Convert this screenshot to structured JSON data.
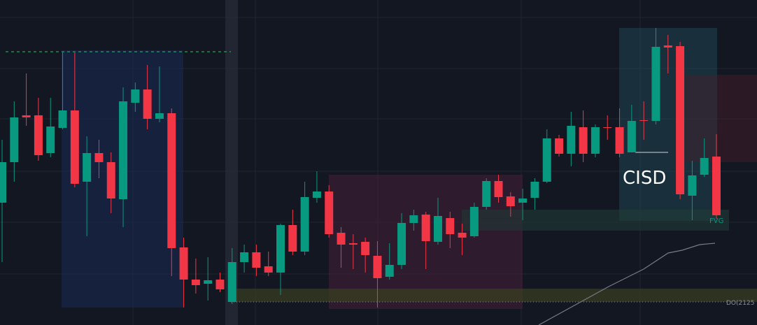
{
  "chart_data": {
    "type": "candlestick",
    "up_color": "#089981",
    "down_color": "#f23645",
    "ylim": [
      0,
      465
    ],
    "open": [
      175,
      233,
      300,
      300,
      246,
      282,
      307,
      205,
      246,
      233,
      180,
      318,
      337,
      295,
      303,
      111,
      65,
      59,
      65,
      33,
      90,
      104,
      84,
      75,
      143,
      105,
      182,
      191,
      132,
      117,
      119,
      99,
      69,
      86,
      146,
      158,
      119,
      153,
      132,
      127,
      169,
      206,
      184,
      175,
      182,
      205,
      267,
      245,
      283,
      245,
      283,
      283,
      247,
      293,
      292,
      400,
      399,
      185,
      215,
      241
    ],
    "high": [
      265,
      320,
      360,
      325,
      325,
      390,
      390,
      270,
      265,
      247,
      340,
      347,
      372,
      370,
      310,
      125,
      95,
      97,
      75,
      110,
      115,
      115,
      105,
      145,
      165,
      205,
      220,
      200,
      140,
      130,
      125,
      120,
      117,
      160,
      165,
      162,
      182,
      162,
      145,
      175,
      210,
      215,
      190,
      195,
      210,
      280,
      272,
      305,
      307,
      287,
      300,
      310,
      315,
      320,
      425,
      415,
      405,
      235,
      267,
      273
    ],
    "low": [
      90,
      205,
      285,
      235,
      240,
      280,
      197,
      127,
      210,
      160,
      140,
      305,
      280,
      290,
      70,
      25,
      45,
      35,
      47,
      30,
      75,
      70,
      70,
      43,
      100,
      100,
      175,
      125,
      82,
      80,
      75,
      25,
      65,
      80,
      135,
      80,
      115,
      110,
      100,
      125,
      165,
      175,
      155,
      150,
      165,
      203,
      241,
      227,
      233,
      240,
      265,
      240,
      247,
      265,
      287,
      360,
      180,
      150,
      212,
      152
    ],
    "close": [
      233,
      297,
      297,
      243,
      284,
      307,
      202,
      246,
      233,
      181,
      320,
      337,
      295,
      303,
      110,
      65,
      57,
      64,
      51,
      90,
      104,
      82,
      75,
      143,
      105,
      183,
      191,
      130,
      115,
      115,
      100,
      67,
      86,
      146,
      157,
      120,
      156,
      130,
      125,
      169,
      206,
      183,
      170,
      181,
      205,
      267,
      245,
      285,
      245,
      283,
      282,
      245,
      292,
      292,
      398,
      397,
      187,
      214,
      239,
      157
    ],
    "annotations": [
      "CISD",
      "FVG",
      "DO(2125"
    ]
  }
}
